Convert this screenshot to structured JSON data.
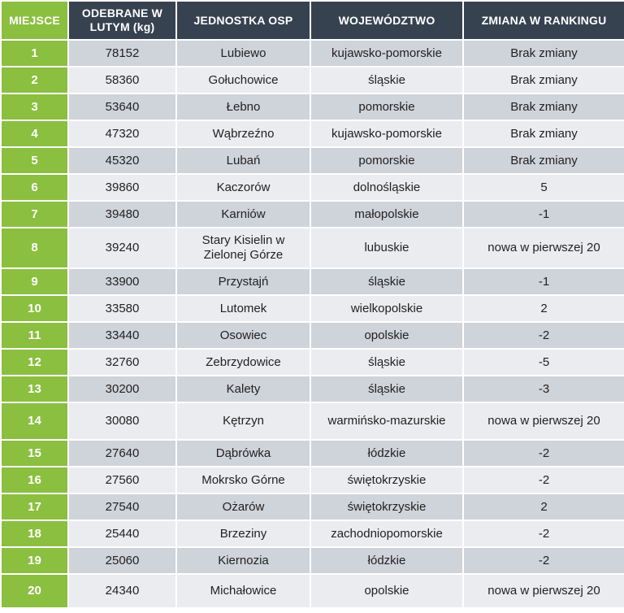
{
  "headers": {
    "rank": "MIEJSCE",
    "collected": "ODEBRANE W LUTYM (kg)",
    "unit": "JEDNOSTKA OSP",
    "voivodeship": "WOJEWÓDZTWO",
    "change": "ZMIANA W RANKINGU"
  },
  "rows": [
    {
      "rank": "1",
      "collected": "78152",
      "unit": "Lubiewo",
      "voivodeship": "kujawsko-pomorskie",
      "change": "Brak zmiany"
    },
    {
      "rank": "2",
      "collected": "58360",
      "unit": "Gołuchowice",
      "voivodeship": "śląskie",
      "change": "Brak zmiany"
    },
    {
      "rank": "3",
      "collected": "53640",
      "unit": "Łebno",
      "voivodeship": "pomorskie",
      "change": "Brak zmiany"
    },
    {
      "rank": "4",
      "collected": "47320",
      "unit": "Wąbrzeźno",
      "voivodeship": "kujawsko-pomorskie",
      "change": "Brak zmiany"
    },
    {
      "rank": "5",
      "collected": "45320",
      "unit": "Lubań",
      "voivodeship": "pomorskie",
      "change": "Brak zmiany"
    },
    {
      "rank": "6",
      "collected": "39860",
      "unit": "Kaczorów",
      "voivodeship": "dolnośląskie",
      "change": "5"
    },
    {
      "rank": "7",
      "collected": "39480",
      "unit": "Karniów",
      "voivodeship": "małopolskie",
      "change": "-1"
    },
    {
      "rank": "8",
      "collected": "39240",
      "unit": "Stary Kisielin w Zielonej Górze",
      "voivodeship": "lubuskie",
      "change": "nowa w pierwszej 20"
    },
    {
      "rank": "9",
      "collected": "33900",
      "unit": "Przystajń",
      "voivodeship": "śląskie",
      "change": "-1"
    },
    {
      "rank": "10",
      "collected": "33580",
      "unit": "Lutomek",
      "voivodeship": "wielkopolskie",
      "change": "2"
    },
    {
      "rank": "11",
      "collected": "33440",
      "unit": "Osowiec",
      "voivodeship": "opolskie",
      "change": "-2"
    },
    {
      "rank": "12",
      "collected": "32760",
      "unit": "Zebrzydowice",
      "voivodeship": "śląskie",
      "change": "-5"
    },
    {
      "rank": "13",
      "collected": "30200",
      "unit": "Kalety",
      "voivodeship": "śląskie",
      "change": "-3"
    },
    {
      "rank": "14",
      "collected": "30080",
      "unit": "Kętrzyn",
      "voivodeship": "warmińsko-mazurskie",
      "change": "nowa w pierwszej 20"
    },
    {
      "rank": "15",
      "collected": "27640",
      "unit": "Dąbrówka",
      "voivodeship": "łódzkie",
      "change": "-2"
    },
    {
      "rank": "16",
      "collected": "27560",
      "unit": "Mokrsko Górne",
      "voivodeship": "świętokrzyskie",
      "change": "-2"
    },
    {
      "rank": "17",
      "collected": "27540",
      "unit": "Ożarów",
      "voivodeship": "świętokrzyskie",
      "change": "2"
    },
    {
      "rank": "18",
      "collected": "25440",
      "unit": "Brzeziny",
      "voivodeship": "zachodniopomorskie",
      "change": "-2"
    },
    {
      "rank": "19",
      "collected": "25060",
      "unit": "Kiernozia",
      "voivodeship": "łódzkie",
      "change": "-2"
    },
    {
      "rank": "20",
      "collected": "24340",
      "unit": "Michałowice",
      "voivodeship": "opolskie",
      "change": "nowa w pierwszej 20"
    }
  ],
  "colors": {
    "header_dark": "#374250",
    "rank_green": "#8bbf3f",
    "row_dark": "#cfd3da",
    "row_light": "#eaecef"
  }
}
